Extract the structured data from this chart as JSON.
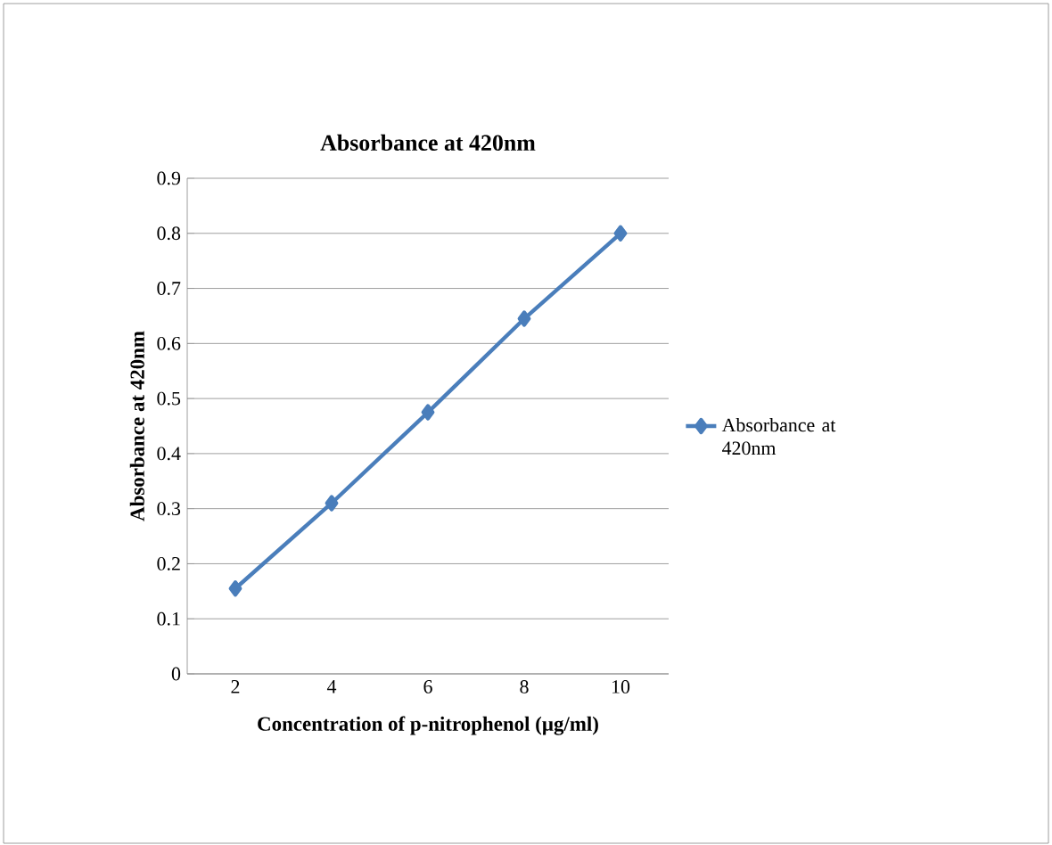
{
  "chart_data": {
    "type": "line",
    "title": "Absorbance at 420nm",
    "xlabel": "Concentration of p-nitrophenol (µg/ml)",
    "ylabel": "Absorbance at 420nm",
    "categories": [
      "2",
      "4",
      "6",
      "8",
      "10"
    ],
    "series": [
      {
        "name": "Absorbance at 420nm",
        "color": "#4a7ebb",
        "values": [
          0.155,
          0.31,
          0.475,
          0.645,
          0.8
        ]
      }
    ],
    "ylim": [
      0,
      0.9
    ],
    "yticks": [
      0,
      0.1,
      0.2,
      0.3,
      0.4,
      0.5,
      0.6,
      0.7,
      0.8,
      0.9
    ],
    "grid": "y",
    "legend": "right",
    "marker": "diamond",
    "line_style": "solid"
  }
}
